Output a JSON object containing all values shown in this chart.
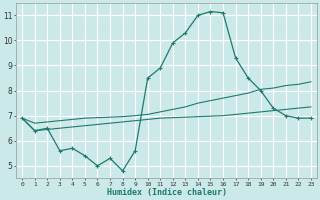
{
  "xlabel": "Humidex (Indice chaleur)",
  "x_ticks": [
    0,
    1,
    2,
    3,
    4,
    5,
    6,
    7,
    8,
    9,
    10,
    11,
    12,
    13,
    14,
    15,
    16,
    17,
    18,
    19,
    20,
    21,
    22,
    23
  ],
  "y_ticks": [
    5,
    6,
    7,
    8,
    9,
    10,
    11
  ],
  "xlim": [
    -0.5,
    23.5
  ],
  "ylim": [
    4.5,
    11.5
  ],
  "background_color": "#cce9ea",
  "grid_color": "#ffffff",
  "line_color": "#1e7a6d",
  "main_x": [
    0,
    1,
    2,
    3,
    4,
    5,
    6,
    7,
    8,
    9,
    10,
    11,
    12,
    13,
    14,
    15,
    16,
    17,
    18,
    19,
    20,
    21,
    22,
    23
  ],
  "main_y": [
    6.9,
    6.4,
    6.5,
    5.6,
    5.7,
    5.4,
    5.0,
    5.3,
    4.8,
    5.6,
    8.5,
    8.9,
    9.9,
    10.3,
    11.0,
    11.15,
    11.1,
    9.3,
    8.5,
    8.0,
    7.3,
    7.0,
    6.9,
    6.9
  ],
  "upper_x": [
    0,
    1,
    2,
    3,
    4,
    5,
    6,
    7,
    8,
    9,
    10,
    11,
    12,
    13,
    14,
    15,
    16,
    17,
    18,
    19,
    20,
    21,
    22,
    23
  ],
  "upper_y": [
    6.9,
    6.7,
    6.75,
    6.8,
    6.85,
    6.9,
    6.92,
    6.94,
    6.96,
    7.0,
    7.05,
    7.15,
    7.25,
    7.35,
    7.5,
    7.6,
    7.7,
    7.8,
    7.9,
    8.05,
    8.1,
    8.2,
    8.25,
    8.35
  ],
  "lower_x": [
    0,
    1,
    2,
    3,
    4,
    5,
    6,
    7,
    8,
    9,
    10,
    11,
    12,
    13,
    14,
    15,
    16,
    17,
    18,
    19,
    20,
    21,
    22,
    23
  ],
  "lower_y": [
    6.9,
    6.4,
    6.45,
    6.5,
    6.55,
    6.6,
    6.65,
    6.7,
    6.75,
    6.8,
    6.85,
    6.9,
    6.92,
    6.94,
    6.96,
    6.98,
    7.0,
    7.05,
    7.1,
    7.15,
    7.2,
    7.25,
    7.3,
    7.35
  ]
}
